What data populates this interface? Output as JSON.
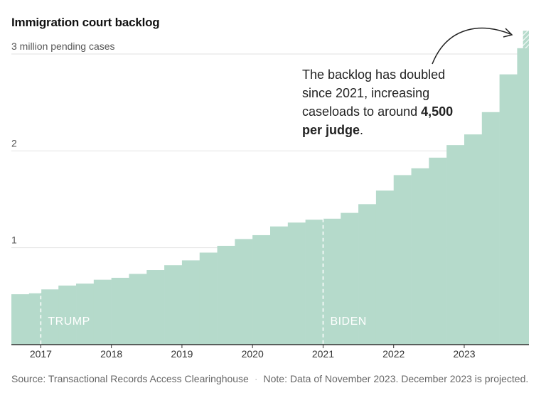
{
  "chart_data": {
    "type": "bar",
    "title": "Immigration court backlog",
    "ylabel": "3 million pending cases",
    "y_tick_labels": [
      "1",
      "2"
    ],
    "ylim": [
      0,
      3.2
    ],
    "x_tick_labels": [
      "2017",
      "2018",
      "2019",
      "2020",
      "2021",
      "2022",
      "2023"
    ],
    "x_start": 2016.583,
    "x_end": 2023.917,
    "quarter_starts": [
      2016.583,
      2016.833,
      2017.0,
      2017.25,
      2017.5,
      2017.75,
      2018.0,
      2018.25,
      2018.5,
      2018.75,
      2019.0,
      2019.25,
      2019.5,
      2019.75,
      2020.0,
      2020.25,
      2020.5,
      2020.75,
      2021.0,
      2021.25,
      2021.5,
      2021.75,
      2022.0,
      2022.25,
      2022.5,
      2022.75,
      2023.0,
      2023.25,
      2023.5,
      2023.75
    ],
    "values": [
      0.52,
      0.53,
      0.57,
      0.61,
      0.63,
      0.67,
      0.69,
      0.73,
      0.77,
      0.82,
      0.87,
      0.95,
      1.02,
      1.09,
      1.13,
      1.22,
      1.26,
      1.29,
      1.3,
      1.36,
      1.45,
      1.59,
      1.75,
      1.82,
      1.93,
      2.06,
      2.17,
      2.4,
      2.79,
      3.06
    ],
    "projected": {
      "start": 2023.833,
      "end": 2023.917,
      "from": 3.06,
      "to": 3.24
    },
    "annotations": [
      {
        "text": "TRUMP",
        "x": 2017.0
      },
      {
        "text": "BIDEN",
        "x": 2021.0
      }
    ],
    "callout": {
      "text": "The backlog has doubled since 2021, increasing caseloads to around ",
      "bold": "4,500 per judge",
      "end": "."
    },
    "colors": {
      "fill": "#b5dacb",
      "hatch": "#ffffff",
      "grid": "#e2e2e2",
      "axis": "#333333"
    }
  },
  "footer": {
    "source": "Source: Transactional Records Access Clearinghouse",
    "note": "Note: Data of November 2023. December 2023 is projected."
  }
}
